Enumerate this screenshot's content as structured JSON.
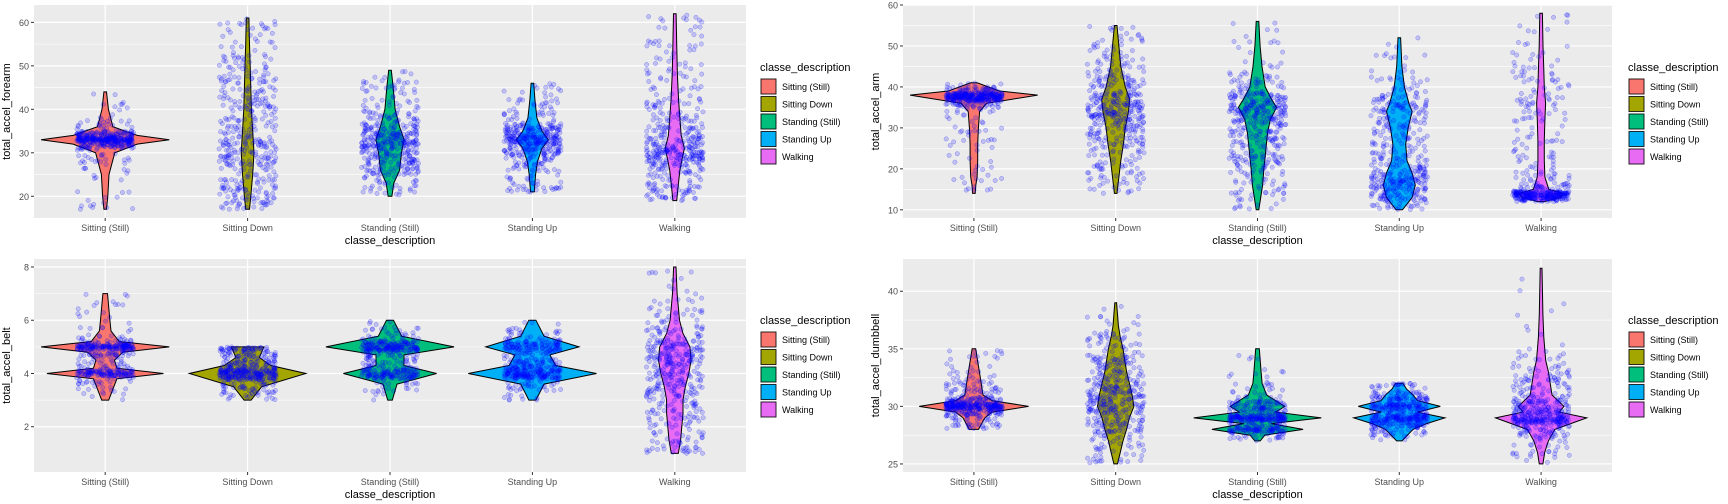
{
  "legend": {
    "title": "classe_description",
    "entries": [
      {
        "label": "Sitting  (Still)",
        "color": "#F8766D"
      },
      {
        "label": "Sitting Down",
        "color": "#A3A500"
      },
      {
        "label": "Standing (Still)",
        "color": "#00BF7D"
      },
      {
        "label": "Standing Up",
        "color": "#00B0F6"
      },
      {
        "label": "Walking",
        "color": "#E76BF3"
      }
    ]
  },
  "point_color": "#0000FF",
  "panel_background": "#EBEBEB",
  "chart_data": [
    {
      "type": "violin",
      "xlabel": "classe_description",
      "ylabel": "total_accel_forearm",
      "categories": [
        "Sitting  (Still)",
        "Sitting Down",
        "Standing (Still)",
        "Standing Up",
        "Walking"
      ],
      "yticks": [
        20,
        30,
        40,
        50,
        60
      ],
      "ylim": [
        15,
        64
      ],
      "grid": true,
      "legend_position": "right",
      "series": [
        {
          "category": "Sitting  (Still)",
          "range": [
            17,
            44
          ],
          "density": [
            [
              17,
              0.02
            ],
            [
              20,
              0.04
            ],
            [
              25,
              0.06
            ],
            [
              30,
              0.15
            ],
            [
              32,
              0.5
            ],
            [
              33,
              1.0
            ],
            [
              34,
              0.5
            ],
            [
              36,
              0.12
            ],
            [
              40,
              0.05
            ],
            [
              44,
              0.02
            ]
          ]
        },
        {
          "category": "Sitting Down",
          "range": [
            17,
            61
          ],
          "density": [
            [
              17,
              0.03
            ],
            [
              20,
              0.05
            ],
            [
              25,
              0.08
            ],
            [
              30,
              0.1
            ],
            [
              35,
              0.08
            ],
            [
              40,
              0.06
            ],
            [
              45,
              0.05
            ],
            [
              50,
              0.04
            ],
            [
              55,
              0.03
            ],
            [
              61,
              0.02
            ]
          ]
        },
        {
          "category": "Standing (Still)",
          "range": [
            20,
            49
          ],
          "density": [
            [
              20,
              0.03
            ],
            [
              23,
              0.06
            ],
            [
              26,
              0.15
            ],
            [
              30,
              0.18
            ],
            [
              33,
              0.22
            ],
            [
              36,
              0.15
            ],
            [
              40,
              0.08
            ],
            [
              45,
              0.05
            ],
            [
              49,
              0.02
            ]
          ]
        },
        {
          "category": "Standing Up",
          "range": [
            21,
            46
          ],
          "density": [
            [
              21,
              0.03
            ],
            [
              25,
              0.05
            ],
            [
              28,
              0.08
            ],
            [
              31,
              0.15
            ],
            [
              33,
              0.25
            ],
            [
              35,
              0.15
            ],
            [
              38,
              0.07
            ],
            [
              42,
              0.04
            ],
            [
              46,
              0.02
            ]
          ]
        },
        {
          "category": "Walking",
          "range": [
            19,
            62
          ],
          "density": [
            [
              19,
              0.03
            ],
            [
              22,
              0.05
            ],
            [
              26,
              0.08
            ],
            [
              29,
              0.12
            ],
            [
              31,
              0.15
            ],
            [
              34,
              0.1
            ],
            [
              38,
              0.08
            ],
            [
              42,
              0.06
            ],
            [
              48,
              0.04
            ],
            [
              55,
              0.03
            ],
            [
              62,
              0.02
            ]
          ]
        }
      ]
    },
    {
      "type": "violin",
      "xlabel": "classe_description",
      "ylabel": "total_accel_arm",
      "categories": [
        "Sitting  (Still)",
        "Sitting Down",
        "Standing (Still)",
        "Standing Up",
        "Walking"
      ],
      "yticks": [
        10,
        20,
        30,
        40,
        50,
        60
      ],
      "ylim": [
        8,
        60
      ],
      "grid": true,
      "legend_position": "right",
      "series": [
        {
          "category": "Sitting  (Still)",
          "range": [
            14,
            41
          ],
          "density": [
            [
              14,
              0.02
            ],
            [
              16,
              0.03
            ],
            [
              18,
              0.05
            ],
            [
              22,
              0.06
            ],
            [
              26,
              0.06
            ],
            [
              30,
              0.07
            ],
            [
              34,
              0.09
            ],
            [
              36,
              0.2
            ],
            [
              37,
              0.6
            ],
            [
              38,
              1.0
            ],
            [
              39,
              0.4
            ],
            [
              41,
              0.05
            ]
          ]
        },
        {
          "category": "Sitting Down",
          "range": [
            14,
            55
          ],
          "density": [
            [
              14,
              0.02
            ],
            [
              18,
              0.05
            ],
            [
              22,
              0.08
            ],
            [
              26,
              0.12
            ],
            [
              30,
              0.15
            ],
            [
              34,
              0.2
            ],
            [
              37,
              0.22
            ],
            [
              40,
              0.15
            ],
            [
              45,
              0.08
            ],
            [
              50,
              0.05
            ],
            [
              55,
              0.02
            ]
          ]
        },
        {
          "category": "Standing (Still)",
          "range": [
            10,
            56
          ],
          "density": [
            [
              10,
              0.02
            ],
            [
              13,
              0.05
            ],
            [
              16,
              0.08
            ],
            [
              20,
              0.1
            ],
            [
              23,
              0.12
            ],
            [
              26,
              0.14
            ],
            [
              29,
              0.16
            ],
            [
              32,
              0.2
            ],
            [
              35,
              0.3
            ],
            [
              37,
              0.22
            ],
            [
              40,
              0.12
            ],
            [
              45,
              0.07
            ],
            [
              50,
              0.04
            ],
            [
              56,
              0.02
            ]
          ]
        },
        {
          "category": "Standing Up",
          "range": [
            10,
            52
          ],
          "density": [
            [
              10,
              0.05
            ],
            [
              13,
              0.2
            ],
            [
              16,
              0.25
            ],
            [
              19,
              0.2
            ],
            [
              22,
              0.12
            ],
            [
              26,
              0.1
            ],
            [
              30,
              0.14
            ],
            [
              34,
              0.2
            ],
            [
              36,
              0.15
            ],
            [
              40,
              0.08
            ],
            [
              45,
              0.04
            ],
            [
              52,
              0.02
            ]
          ]
        },
        {
          "category": "Walking",
          "range": [
            12,
            58
          ],
          "density": [
            [
              12,
              0.05
            ],
            [
              13,
              0.3
            ],
            [
              14,
              0.35
            ],
            [
              15,
              0.12
            ],
            [
              18,
              0.06
            ],
            [
              22,
              0.05
            ],
            [
              27,
              0.05
            ],
            [
              32,
              0.06
            ],
            [
              36,
              0.07
            ],
            [
              40,
              0.05
            ],
            [
              45,
              0.04
            ],
            [
              50,
              0.03
            ],
            [
              58,
              0.02
            ]
          ]
        }
      ]
    },
    {
      "type": "violin",
      "xlabel": "classe_description",
      "ylabel": "total_accel_belt",
      "categories": [
        "Sitting  (Still)",
        "Sitting Down",
        "Standing (Still)",
        "Standing Up",
        "Walking"
      ],
      "yticks": [
        2,
        4,
        6,
        8
      ],
      "ylim": [
        0.3,
        8.3
      ],
      "grid": true,
      "legend_position": "right",
      "series": [
        {
          "category": "Sitting  (Still)",
          "range": [
            3,
            7
          ],
          "density": [
            [
              3,
              0.03
            ],
            [
              3.8,
              0.1
            ],
            [
              4,
              0.5
            ],
            [
              4.2,
              0.1
            ],
            [
              4.5,
              0.08
            ],
            [
              4.8,
              0.15
            ],
            [
              5,
              0.55
            ],
            [
              5.2,
              0.12
            ],
            [
              5.6,
              0.05
            ],
            [
              6,
              0.04
            ],
            [
              7,
              0.02
            ]
          ]
        },
        {
          "category": "Sitting Down",
          "range": [
            3,
            5
          ],
          "density": [
            [
              3,
              0.03
            ],
            [
              3.5,
              0.12
            ],
            [
              4,
              0.5
            ],
            [
              4.3,
              0.2
            ],
            [
              4.6,
              0.1
            ],
            [
              5,
              0.14
            ]
          ]
        },
        {
          "category": "Standing (Still)",
          "range": [
            3,
            6
          ],
          "density": [
            [
              3,
              0.02
            ],
            [
              3.6,
              0.06
            ],
            [
              4,
              0.4
            ],
            [
              4.3,
              0.12
            ],
            [
              4.7,
              0.12
            ],
            [
              5,
              0.55
            ],
            [
              5.4,
              0.1
            ],
            [
              6,
              0.03
            ]
          ]
        },
        {
          "category": "Standing Up",
          "range": [
            3,
            6
          ],
          "density": [
            [
              3,
              0.03
            ],
            [
              3.6,
              0.1
            ],
            [
              4,
              0.55
            ],
            [
              4.3,
              0.2
            ],
            [
              4.7,
              0.15
            ],
            [
              5,
              0.4
            ],
            [
              5.4,
              0.1
            ],
            [
              6,
              0.03
            ]
          ]
        },
        {
          "category": "Walking",
          "range": [
            1,
            8
          ],
          "density": [
            [
              1,
              0.03
            ],
            [
              1.5,
              0.05
            ],
            [
              2,
              0.06
            ],
            [
              2.5,
              0.07
            ],
            [
              3,
              0.07
            ],
            [
              3.5,
              0.09
            ],
            [
              4,
              0.12
            ],
            [
              4.5,
              0.14
            ],
            [
              5,
              0.13
            ],
            [
              5.5,
              0.07
            ],
            [
              6,
              0.04
            ],
            [
              7,
              0.02
            ],
            [
              8,
              0.01
            ]
          ]
        }
      ]
    },
    {
      "type": "violin",
      "xlabel": "classe_description",
      "ylabel": "total_accel_dumbbell",
      "categories": [
        "Sitting  (Still)",
        "Sitting Down",
        "Standing (Still)",
        "Standing Up",
        "Walking"
      ],
      "yticks": [
        25,
        30,
        35,
        40
      ],
      "ylim": [
        24.3,
        42.8
      ],
      "grid": true,
      "legend_position": "right",
      "series": [
        {
          "category": "Sitting  (Still)",
          "range": [
            28,
            35
          ],
          "density": [
            [
              28,
              0.05
            ],
            [
              29,
              0.12
            ],
            [
              29.5,
              0.2
            ],
            [
              30,
              0.6
            ],
            [
              30.5,
              0.2
            ],
            [
              31,
              0.1
            ],
            [
              32,
              0.08
            ],
            [
              33,
              0.06
            ],
            [
              34,
              0.04
            ],
            [
              35,
              0.02
            ]
          ]
        },
        {
          "category": "Sitting Down",
          "range": [
            25,
            39
          ],
          "density": [
            [
              25,
              0.02
            ],
            [
              26,
              0.05
            ],
            [
              27,
              0.08
            ],
            [
              28,
              0.12
            ],
            [
              29,
              0.15
            ],
            [
              30,
              0.2
            ],
            [
              31,
              0.18
            ],
            [
              32,
              0.15
            ],
            [
              33,
              0.12
            ],
            [
              34,
              0.1
            ],
            [
              35,
              0.08
            ],
            [
              36,
              0.05
            ],
            [
              37,
              0.03
            ],
            [
              39,
              0.01
            ]
          ]
        },
        {
          "category": "Standing (Still)",
          "range": [
            27,
            35
          ],
          "density": [
            [
              27,
              0.03
            ],
            [
              27.5,
              0.08
            ],
            [
              28,
              0.5
            ],
            [
              28.5,
              0.15
            ],
            [
              29,
              0.7
            ],
            [
              29.5,
              0.2
            ],
            [
              30,
              0.3
            ],
            [
              31,
              0.1
            ],
            [
              32,
              0.05
            ],
            [
              33,
              0.04
            ],
            [
              35,
              0.02
            ]
          ]
        },
        {
          "category": "Standing Up",
          "range": [
            27,
            32
          ],
          "density": [
            [
              27,
              0.03
            ],
            [
              28,
              0.15
            ],
            [
              28.5,
              0.3
            ],
            [
              29,
              0.5
            ],
            [
              29.5,
              0.2
            ],
            [
              30,
              0.45
            ],
            [
              30.5,
              0.2
            ],
            [
              31,
              0.15
            ],
            [
              31.5,
              0.08
            ],
            [
              32,
              0.04
            ]
          ]
        },
        {
          "category": "Walking",
          "range": [
            25,
            42
          ],
          "density": [
            [
              25,
              0.02
            ],
            [
              26,
              0.04
            ],
            [
              27,
              0.08
            ],
            [
              28,
              0.15
            ],
            [
              29,
              0.5
            ],
            [
              29.5,
              0.2
            ],
            [
              30,
              0.25
            ],
            [
              31,
              0.12
            ],
            [
              32,
              0.1
            ],
            [
              33,
              0.08
            ],
            [
              34,
              0.05
            ],
            [
              36,
              0.03
            ],
            [
              38,
              0.02
            ],
            [
              42,
              0.01
            ]
          ]
        }
      ]
    }
  ]
}
